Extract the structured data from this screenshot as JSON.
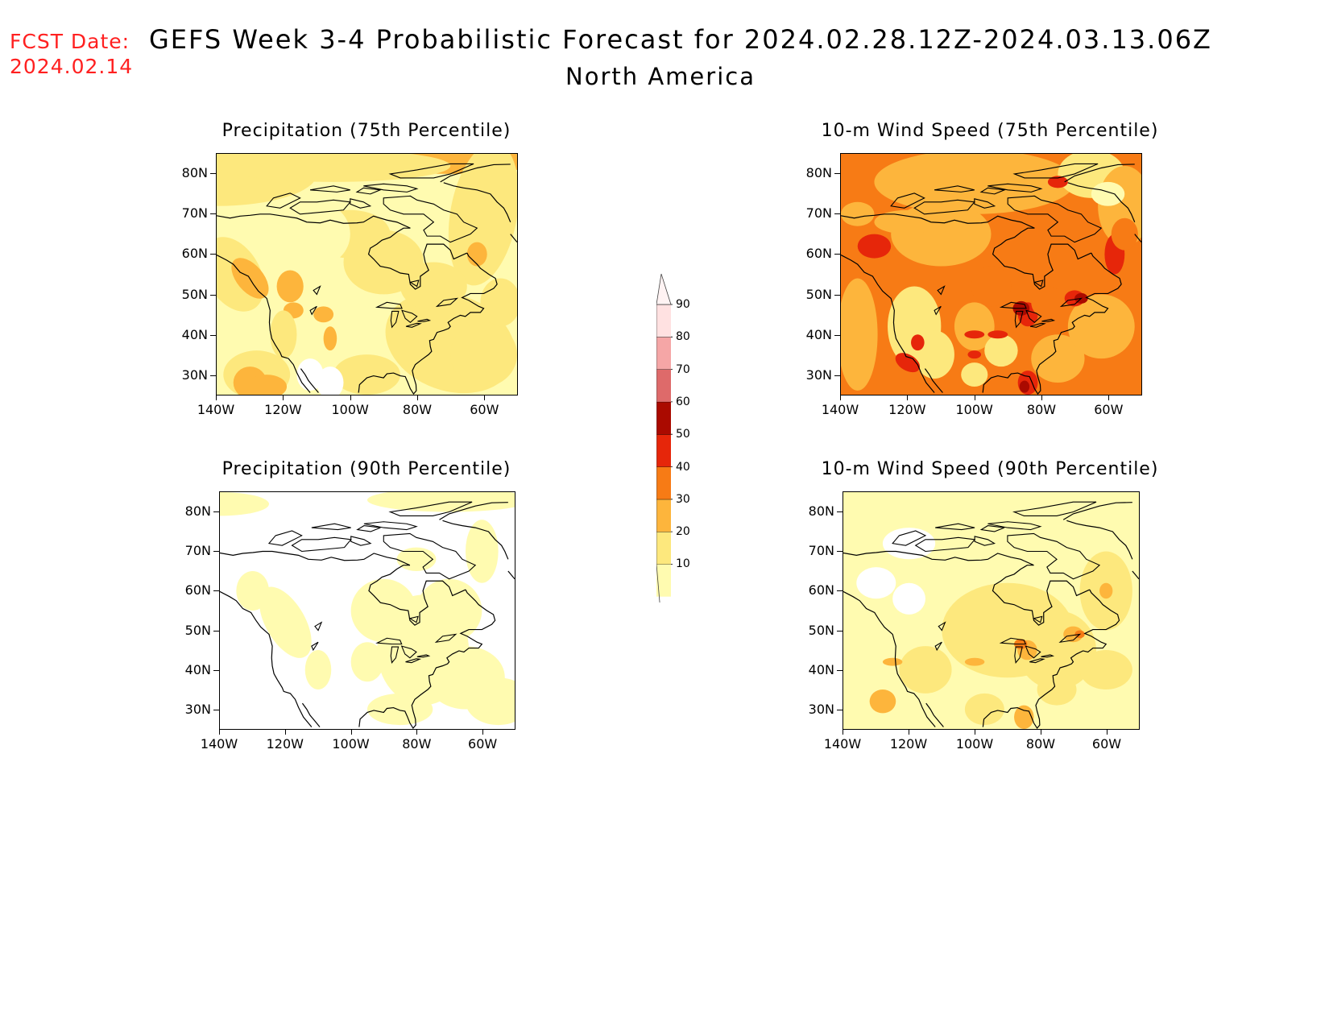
{
  "header": {
    "fcst_label": "FCST Date:",
    "fcst_date": "2024.02.14",
    "title": "GEFS Week 3-4 Probabilistic Forecast for 2024.02.28.12Z-2024.03.13.06Z",
    "region": "North America"
  },
  "panels": [
    {
      "title": "Precipitation (75th Percentile)",
      "field": "precipitation",
      "percentile": 75
    },
    {
      "title": "10-m Wind Speed (75th Percentile)",
      "field": "wind_speed",
      "percentile": 75
    },
    {
      "title": "Precipitation (90th Percentile)",
      "field": "precipitation",
      "percentile": 90
    },
    {
      "title": "10-m Wind Speed (90th Percentile)",
      "field": "wind_speed",
      "percentile": 90
    }
  ],
  "lat_labels": [
    "80N",
    "70N",
    "60N",
    "50N",
    "40N",
    "30N"
  ],
  "lon_labels": [
    "140W",
    "120W",
    "100W",
    "80W",
    "60W"
  ],
  "colorbar": {
    "labels": [
      "10",
      "20",
      "30",
      "40",
      "50",
      "60",
      "70",
      "80",
      "90"
    ],
    "colors": [
      "#fffbb0",
      "#fde87d",
      "#fdb53c",
      "#f77b15",
      "#e6260a",
      "#aa0a00",
      "#de6a6a",
      "#f5a6a6",
      "#ffe1e1"
    ]
  }
}
